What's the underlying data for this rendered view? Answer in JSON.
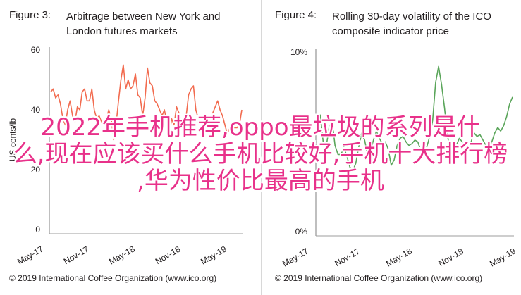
{
  "left": {
    "fig_label": "Figure 3:",
    "title_line1": "Arbitrage between New York and",
    "title_line2": "London futures markets",
    "footer": "© 2019 International Coffee Organization (www.ico.org)"
  },
  "right": {
    "fig_label": "Figure 4:",
    "title_line1": "Rolling 30-day volatility of the ICO",
    "title_line2": "composite indicator price",
    "footer": "© 2019 International Coffee Organization (www.ico.org)"
  },
  "overlay": {
    "line1": "2022年手机推荐,oppo最垃圾的系列是什",
    "line2": "么,现在应该买什么手机比较好,手机十大排行榜",
    "line3": ",华为性价比最高的手机"
  },
  "chart_data": [
    {
      "type": "line",
      "title": "Arbitrage between New York and London futures markets",
      "ylabel": "US cents/lb",
      "ylim": [
        0,
        60
      ],
      "yticks": [
        0,
        20,
        40,
        60
      ],
      "xticks": [
        "May-17",
        "Nov-17",
        "May-18",
        "Nov-18",
        "May-19"
      ],
      "color": "#f26b4f",
      "series": [
        {
          "values": [
            46,
            47,
            44,
            45,
            42,
            37,
            35,
            40,
            43,
            38,
            36,
            41,
            40,
            46,
            47,
            43,
            43,
            47,
            40,
            37,
            38,
            36,
            36,
            37,
            40,
            37,
            30,
            35,
            43,
            50,
            55,
            47,
            50,
            47,
            48,
            52,
            45,
            44,
            38,
            44,
            54,
            49,
            48,
            43,
            42,
            40,
            38,
            40,
            36,
            32,
            37,
            35,
            41,
            39,
            36,
            33,
            38,
            45,
            47,
            48,
            40,
            37,
            36,
            37,
            35,
            36,
            36,
            39,
            41,
            43,
            40,
            38,
            35,
            32,
            34,
            36,
            34,
            34,
            35,
            40
          ]
        }
      ]
    },
    {
      "type": "line",
      "title": "Rolling 30-day volatility of the ICO composite indicator price",
      "ylim": [
        0,
        10
      ],
      "yticks": [
        "0%",
        "10%"
      ],
      "xticks": [
        "May-17",
        "Nov-17",
        "May-18",
        "Nov-18",
        "May-19"
      ],
      "color": "#5aa55a",
      "series": [
        {
          "values": [
            5.7,
            6.5,
            5.0,
            4.7,
            5.8,
            6.2,
            4.8,
            4.3,
            4.3,
            4.7,
            4.2,
            3.6,
            3.4,
            3.8,
            4.7,
            5.5,
            5.1,
            4.3,
            4.5,
            5.1,
            5.6,
            5.2,
            4.9,
            5.0,
            4.6,
            3.7,
            4.0,
            4.8,
            5.2,
            5.3,
            5.0,
            4.8,
            4.9,
            5.1,
            5.0,
            4.5,
            4.2,
            4.7,
            5.3,
            6.2,
            8.3,
            9.2,
            8.2,
            6.9,
            5.4,
            4.3,
            4.5,
            4.8,
            5.2,
            5.0,
            4.3,
            4.6,
            5.0,
            5.5,
            5.3,
            5.4,
            5.1,
            4.8,
            4.6,
            5.0,
            5.5,
            5.8,
            5.6,
            5.9,
            6.4,
            7.1,
            7.5
          ]
        }
      ]
    }
  ]
}
